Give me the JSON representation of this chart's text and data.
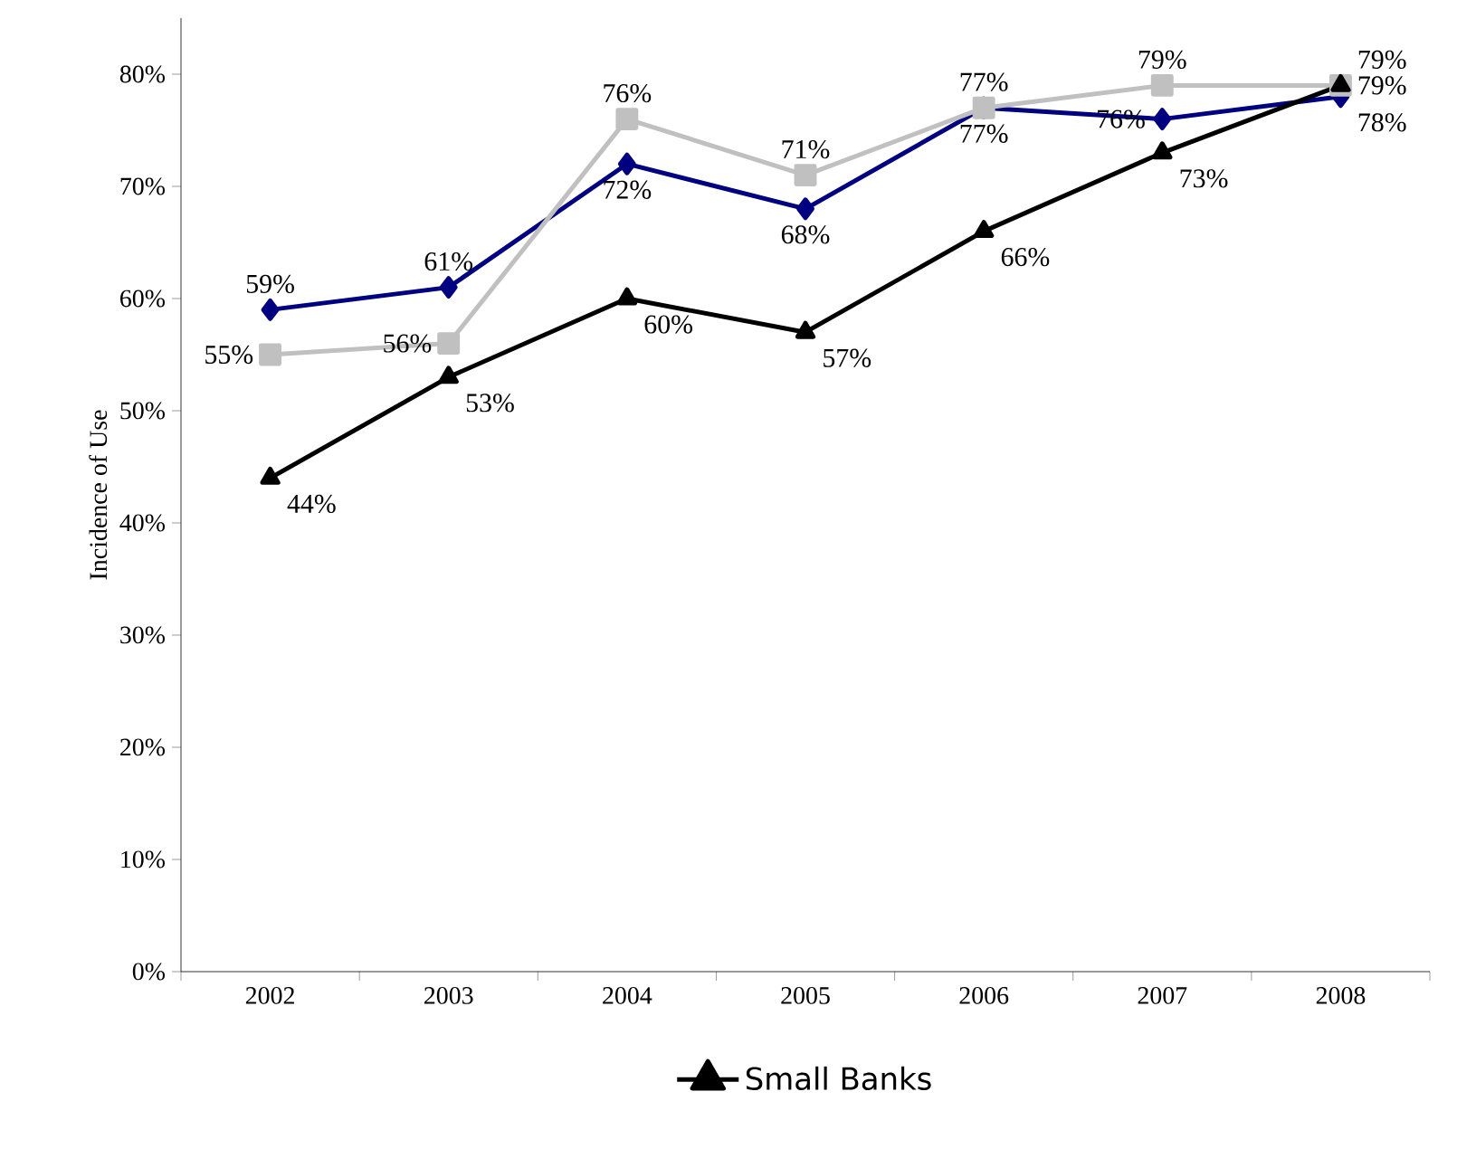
{
  "chart_data": {
    "type": "line",
    "ylabel": "Incidence of Use",
    "categories": [
      "2002",
      "2003",
      "2004",
      "2005",
      "2006",
      "2007",
      "2008"
    ],
    "series": [
      {
        "color": "#000080",
        "marker": "diamond",
        "values": [
          59,
          61,
          72,
          68,
          77,
          76,
          78
        ],
        "value_labels": [
          "59%",
          "61%",
          "72%",
          "68%",
          "77%",
          "76%",
          "78%"
        ]
      },
      {
        "color": "#c0c0c0",
        "marker": "square",
        "values": [
          55,
          56,
          76,
          71,
          77,
          79,
          79
        ],
        "value_labels": [
          "55%",
          "56%",
          "76%",
          "71%",
          "77%",
          "79%",
          "79%"
        ]
      },
      {
        "name": "Small Banks",
        "color": "#000000",
        "marker": "triangle",
        "values": [
          44,
          53,
          60,
          57,
          66,
          73,
          79
        ],
        "value_labels": [
          "44%",
          "53%",
          "60%",
          "57%",
          "66%",
          "73%",
          "79%"
        ]
      }
    ],
    "ylim": [
      0,
      85
    ],
    "yticks": [
      {
        "value": 0,
        "label": "0%"
      },
      {
        "value": 10,
        "label": "10%"
      },
      {
        "value": 20,
        "label": "20%"
      },
      {
        "value": 30,
        "label": "30%"
      },
      {
        "value": 40,
        "label": "40%"
      },
      {
        "value": 50,
        "label": "50%"
      },
      {
        "value": 60,
        "label": "60%"
      },
      {
        "value": 70,
        "label": "70%"
      },
      {
        "value": 80,
        "label": "80%"
      }
    ],
    "grid": false,
    "legend": "bottom"
  }
}
